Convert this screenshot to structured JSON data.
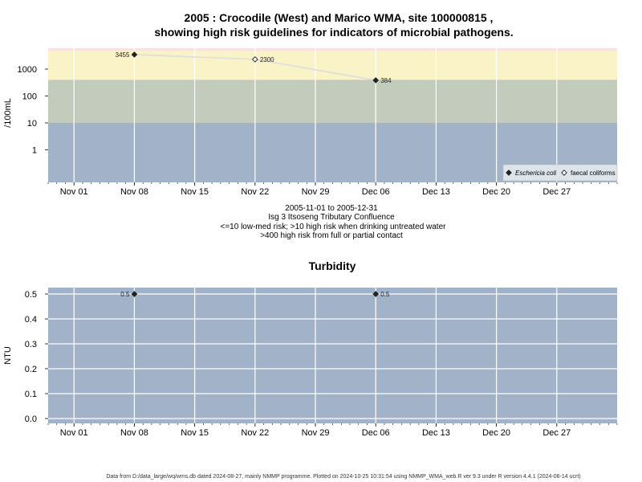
{
  "title_line1": "2005 : Crocodile (West) and Marico WMA, site 100000815 ,",
  "title_line2": "showing high risk guidelines for indicators of microbial pathogens.",
  "subtitle_lines": [
    "2005-11-01 to 2005-12-31",
    "Isg 3 Itsoseng Tributary Confluence",
    "<=10 low-med risk; >10 high risk when drinking untreated water",
    ">400 high risk from full or partial contact"
  ],
  "footer": "Data from D:/data_large/wq/wms.db dated 2024-08-27, mainly NMMP programme. Plotted on 2024-10-25 10:31:54 using NMMP_WMA_web.R ver 9.3 under R version 4.4.1 (2024-06-14 ucrt)",
  "colors": {
    "band_low": "#a2b2c8",
    "band_mid": "#c3ccbc",
    "band_high": "#fbf3c8",
    "band_top": "#fbe2e2",
    "grid": "#ffffff",
    "line": "#dddddd",
    "point": "#222222"
  },
  "chart_data": [
    {
      "type": "scatter",
      "title": "",
      "ylabel": "/100mL",
      "xlabel": "",
      "yscale": "log",
      "y_ticks": [
        1,
        10,
        100,
        1000
      ],
      "y_tick_labels": [
        "1",
        "10",
        "100",
        "1000"
      ],
      "x_ticks": [
        "2005-11-01",
        "2005-11-08",
        "2005-11-15",
        "2005-11-22",
        "2005-11-29",
        "2005-12-06",
        "2005-12-13",
        "2005-12-20",
        "2005-12-27"
      ],
      "x_tick_labels": [
        "Nov 01",
        "Nov 08",
        "Nov 15",
        "Nov 22",
        "Nov 29",
        "Dec 06",
        "Dec 13",
        "Dec 20",
        "Dec 27"
      ],
      "xlim": [
        "2005-10-29",
        "2006-01-03"
      ],
      "guidelines": [
        10,
        400
      ],
      "series": [
        {
          "name": "Eschericia coli",
          "marker": "filled-diamond",
          "points": [
            {
              "x": "2005-11-08",
              "y": 3455,
              "label": "3455"
            },
            {
              "x": "2005-12-06",
              "y": 384,
              "label": "384"
            }
          ]
        },
        {
          "name": "faecal coliforms",
          "marker": "open-diamond",
          "points": [
            {
              "x": "2005-11-22",
              "y": 2300,
              "label": "2300"
            }
          ]
        }
      ],
      "legend": {
        "position": "bottom-right",
        "items": [
          "Eschericia coli",
          "faecal coliforms"
        ]
      },
      "grid": true
    },
    {
      "type": "scatter",
      "title": "Turbidity",
      "ylabel": "NTU",
      "xlabel": "",
      "ylim": [
        0.0,
        0.5
      ],
      "y_ticks": [
        0.0,
        0.1,
        0.2,
        0.3,
        0.4,
        0.5
      ],
      "y_tick_labels": [
        "0.0",
        "0.1",
        "0.2",
        "0.3",
        "0.4",
        "0.5"
      ],
      "x_ticks": [
        "2005-11-01",
        "2005-11-08",
        "2005-11-15",
        "2005-11-22",
        "2005-11-29",
        "2005-12-06",
        "2005-12-13",
        "2005-12-20",
        "2005-12-27"
      ],
      "x_tick_labels": [
        "Nov 01",
        "Nov 08",
        "Nov 15",
        "Nov 22",
        "Nov 29",
        "Dec 06",
        "Dec 13",
        "Dec 20",
        "Dec 27"
      ],
      "xlim": [
        "2005-10-29",
        "2006-01-03"
      ],
      "series": [
        {
          "name": "",
          "marker": "filled-diamond",
          "points": [
            {
              "x": "2005-11-08",
              "y": 0.5,
              "label": "0.5"
            },
            {
              "x": "2005-12-06",
              "y": 0.5,
              "label": "0.5"
            }
          ]
        }
      ],
      "grid": true
    }
  ]
}
